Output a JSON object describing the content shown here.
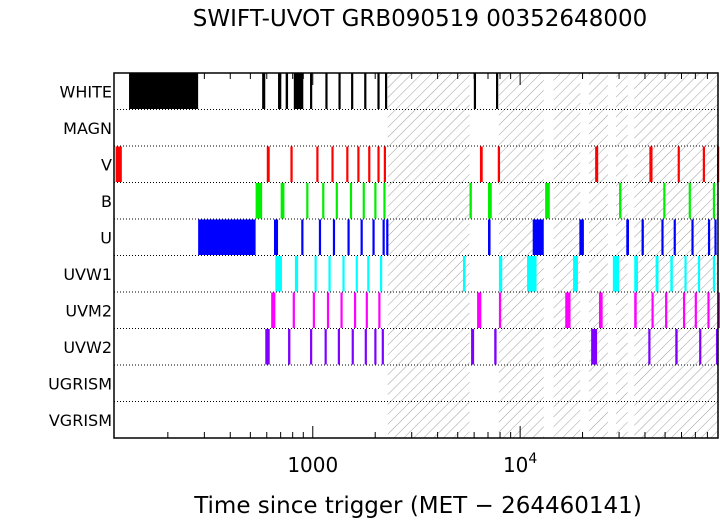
{
  "chart_data": {
    "type": "timeline",
    "title": "SWIFT-UVOT GRB090519 00352648000",
    "xlabel": "Time since trigger (MET − 264460141)",
    "x_scale": "log",
    "xlim": [
      110,
      90000
    ],
    "x_ticks": [
      {
        "value": 1000,
        "label": "1000"
      },
      {
        "value": 10000,
        "label": "10",
        "exp": "4"
      }
    ],
    "rows": [
      "WHITE",
      "MAGN",
      "V",
      "B",
      "U",
      "UVW1",
      "UVM2",
      "UVW2",
      "UGRISM",
      "VGRISM"
    ],
    "hatched_intervals": [
      [
        2300,
        5700
      ],
      [
        7900,
        13000
      ],
      [
        14500,
        19500
      ],
      [
        21500,
        26500
      ],
      [
        29000,
        33000
      ],
      [
        35500,
        90000
      ]
    ],
    "series": [
      {
        "name": "WHITE",
        "color": "#000000",
        "intervals": [
          [
            130,
            280
          ],
          [
            570,
            590
          ],
          [
            680,
            705
          ],
          [
            740,
            760
          ],
          [
            810,
            900
          ],
          [
            970,
            990
          ],
          [
            1150,
            1165
          ],
          [
            1330,
            1345
          ],
          [
            1530,
            1545
          ],
          [
            1770,
            1785
          ],
          [
            2050,
            2065
          ],
          [
            2230,
            2245
          ],
          [
            5980,
            6100
          ],
          [
            7650,
            7750
          ]
        ]
      },
      {
        "name": "MAGN",
        "color": "#ff0000",
        "intervals": []
      },
      {
        "name": "V",
        "color": "#ff0000",
        "intervals": [
          [
            112,
            120
          ],
          [
            600,
            620
          ],
          [
            780,
            800
          ],
          [
            1040,
            1060
          ],
          [
            1230,
            1250
          ],
          [
            1450,
            1470
          ],
          [
            1640,
            1660
          ],
          [
            1850,
            1870
          ],
          [
            2050,
            2070
          ],
          [
            2200,
            2220
          ],
          [
            6400,
            6600
          ],
          [
            7800,
            8000
          ],
          [
            23000,
            23800
          ],
          [
            42000,
            43500
          ],
          [
            57500,
            58500
          ],
          [
            76000,
            77500
          ],
          [
            89000,
            90000
          ]
        ]
      },
      {
        "name": "B",
        "color": "#00ee00",
        "intervals": [
          [
            530,
            570
          ],
          [
            700,
            730
          ],
          [
            930,
            950
          ],
          [
            1110,
            1130
          ],
          [
            1290,
            1310
          ],
          [
            1510,
            1530
          ],
          [
            1740,
            1760
          ],
          [
            1980,
            2000
          ],
          [
            2190,
            2210
          ],
          [
            5700,
            5850
          ],
          [
            7000,
            7300
          ],
          [
            13200,
            13900
          ],
          [
            30000,
            30800
          ],
          [
            49000,
            50000
          ],
          [
            65000,
            66000
          ],
          [
            85000,
            86000
          ]
        ]
      },
      {
        "name": "U",
        "color": "#0000ff",
        "intervals": [
          [
            280,
            530
          ],
          [
            650,
            680
          ],
          [
            880,
            900
          ],
          [
            1070,
            1090
          ],
          [
            1250,
            1270
          ],
          [
            1470,
            1490
          ],
          [
            1700,
            1720
          ],
          [
            1940,
            1960
          ],
          [
            2170,
            2190
          ],
          [
            2260,
            2280
          ],
          [
            7000,
            7200
          ],
          [
            11500,
            13000
          ],
          [
            19300,
            20300
          ],
          [
            32500,
            33500
          ],
          [
            38500,
            39500
          ],
          [
            48000,
            49000
          ],
          [
            55000,
            56000
          ],
          [
            67000,
            68000
          ],
          [
            80500,
            82000
          ],
          [
            86500,
            88000
          ]
        ]
      },
      {
        "name": "UVW1",
        "color": "#00ffff",
        "intervals": [
          [
            660,
            710
          ],
          [
            820,
            850
          ],
          [
            1020,
            1045
          ],
          [
            1190,
            1220
          ],
          [
            1390,
            1420
          ],
          [
            1610,
            1640
          ],
          [
            1830,
            1860
          ],
          [
            2110,
            2130
          ],
          [
            5300,
            5450
          ],
          [
            7900,
            8200
          ],
          [
            10800,
            12000
          ],
          [
            18000,
            19000
          ],
          [
            28000,
            30000
          ],
          [
            35500,
            37000
          ],
          [
            45000,
            46500
          ],
          [
            53000,
            54500
          ],
          [
            62000,
            63500
          ],
          [
            72000,
            73500
          ],
          [
            85000,
            86500
          ]
        ]
      },
      {
        "name": "UVM2",
        "color": "#ff00ff",
        "intervals": [
          [
            630,
            660
          ],
          [
            800,
            820
          ],
          [
            1000,
            1020
          ],
          [
            1170,
            1190
          ],
          [
            1360,
            1390
          ],
          [
            1580,
            1600
          ],
          [
            1800,
            1820
          ],
          [
            2070,
            2090
          ],
          [
            6200,
            6500
          ],
          [
            7900,
            8100
          ],
          [
            16500,
            17500
          ],
          [
            24000,
            25000
          ],
          [
            35500,
            36500
          ],
          [
            43000,
            44000
          ],
          [
            50000,
            51000
          ],
          [
            61000,
            62000
          ],
          [
            69500,
            70500
          ],
          [
            80000,
            81000
          ],
          [
            90000,
            91000
          ]
        ]
      },
      {
        "name": "UVW2",
        "color": "#7f00ff",
        "intervals": [
          [
            590,
            620
          ],
          [
            760,
            780
          ],
          [
            970,
            990
          ],
          [
            1140,
            1160
          ],
          [
            1320,
            1340
          ],
          [
            1540,
            1560
          ],
          [
            1780,
            1800
          ],
          [
            1980,
            2000
          ],
          [
            2150,
            2170
          ],
          [
            5800,
            6000
          ],
          [
            7500,
            7700
          ],
          [
            22000,
            23500
          ],
          [
            41500,
            42500
          ],
          [
            56000,
            57500
          ],
          [
            73000,
            74500
          ],
          [
            88000,
            90000
          ]
        ]
      },
      {
        "name": "UGRISM",
        "color": "#000000",
        "intervals": []
      },
      {
        "name": "VGRISM",
        "color": "#000000",
        "intervals": []
      }
    ]
  }
}
